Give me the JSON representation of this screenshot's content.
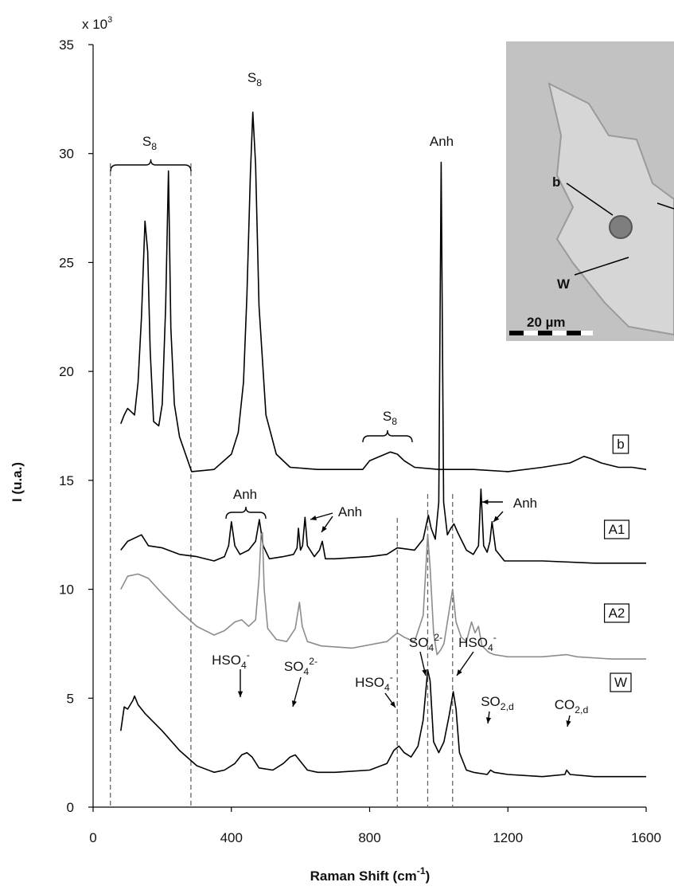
{
  "chart_data": {
    "type": "line",
    "y_multiplier": {
      "text": "x 10",
      "sup": "3"
    },
    "xlabel": {
      "text": "Raman Shift (cm",
      "sup": "-1",
      "after": ")"
    },
    "ylabel": "I (u.a.)",
    "xlim": [
      0,
      1600
    ],
    "xticks": [
      0,
      400,
      800,
      1200,
      1600
    ],
    "ylim": [
      0,
      35
    ],
    "yticks": [
      0,
      5,
      10,
      15,
      20,
      25,
      30,
      35
    ],
    "reference_lines": [
      50,
      283,
      880,
      968,
      1040
    ],
    "series": [
      {
        "name": "b",
        "color": "#000000",
        "x": [
          80,
          90,
          100,
          120,
          130,
          140,
          150,
          158,
          165,
          175,
          190,
          200,
          210,
          218,
          225,
          235,
          250,
          285,
          350,
          400,
          420,
          435,
          445,
          455,
          462,
          470,
          480,
          500,
          530,
          570,
          650,
          780,
          800,
          830,
          860,
          880,
          900,
          930,
          1000,
          1100,
          1200,
          1300,
          1380,
          1420,
          1440,
          1470,
          1520,
          1560,
          1600
        ],
        "values": [
          17.6,
          18.0,
          18.3,
          18.0,
          19.5,
          22.5,
          26.9,
          25.5,
          21.0,
          17.7,
          17.5,
          18.5,
          23.0,
          29.2,
          22.0,
          18.5,
          17.0,
          15.4,
          15.5,
          16.2,
          17.2,
          19.5,
          23.5,
          29.0,
          31.9,
          29.5,
          23.0,
          18.0,
          16.2,
          15.6,
          15.5,
          15.5,
          15.9,
          16.1,
          16.3,
          16.2,
          15.9,
          15.6,
          15.5,
          15.5,
          15.4,
          15.6,
          15.8,
          16.1,
          16.0,
          15.8,
          15.6,
          15.6,
          15.5
        ]
      },
      {
        "name": "A1",
        "color": "#000000",
        "x": [
          80,
          100,
          140,
          160,
          200,
          250,
          300,
          350,
          380,
          392,
          400,
          410,
          425,
          450,
          470,
          481,
          492,
          510,
          550,
          580,
          590,
          594,
          600,
          606,
          613,
          620,
          640,
          655,
          663,
          672,
          700,
          800,
          850,
          880,
          930,
          955,
          970,
          978,
          990,
          1000,
          1007,
          1014,
          1025,
          1035,
          1044,
          1055,
          1080,
          1100,
          1115,
          1122,
          1130,
          1140,
          1148,
          1154,
          1165,
          1190,
          1300,
          1450,
          1600
        ],
        "values": [
          11.8,
          12.2,
          12.5,
          12.0,
          11.9,
          11.6,
          11.5,
          11.3,
          11.5,
          12.0,
          13.1,
          12.0,
          11.6,
          11.8,
          12.2,
          13.2,
          12.0,
          11.4,
          11.5,
          11.6,
          11.9,
          12.8,
          11.8,
          12.0,
          13.3,
          12.0,
          11.5,
          11.8,
          12.2,
          11.4,
          11.4,
          11.5,
          11.6,
          11.9,
          11.8,
          12.3,
          13.4,
          12.8,
          12.3,
          14.0,
          29.6,
          14.0,
          12.5,
          12.8,
          13.0,
          12.6,
          11.8,
          11.6,
          12.0,
          14.6,
          12.0,
          11.7,
          12.2,
          13.1,
          11.8,
          11.3,
          11.3,
          11.2,
          11.2
        ]
      },
      {
        "name": "A2",
        "color": "#8c8c8c",
        "x": [
          80,
          100,
          130,
          160,
          200,
          250,
          300,
          350,
          380,
          410,
          430,
          450,
          470,
          480,
          486,
          490,
          495,
          505,
          530,
          560,
          585,
          597,
          605,
          620,
          660,
          750,
          850,
          880,
          900,
          930,
          955,
          968,
          975,
          985,
          995,
          1005,
          1015,
          1030,
          1040,
          1050,
          1065,
          1080,
          1095,
          1105,
          1115,
          1125,
          1145,
          1160,
          1200,
          1300,
          1370,
          1400,
          1500,
          1600
        ],
        "values": [
          10.0,
          10.6,
          10.7,
          10.5,
          9.8,
          9.0,
          8.3,
          7.9,
          8.1,
          8.5,
          8.6,
          8.3,
          8.6,
          10.5,
          12.5,
          12.6,
          10.0,
          8.2,
          7.7,
          7.6,
          8.2,
          9.4,
          8.3,
          7.6,
          7.4,
          7.3,
          7.6,
          8.0,
          7.8,
          7.6,
          8.8,
          12.5,
          11.0,
          8.0,
          7.0,
          7.2,
          7.5,
          9.0,
          10.0,
          8.5,
          7.8,
          7.6,
          8.5,
          8.0,
          8.3,
          7.4,
          7.1,
          7.0,
          6.9,
          6.9,
          7.0,
          6.9,
          6.8,
          6.8
        ]
      },
      {
        "name": "W",
        "color": "#000000",
        "x": [
          80,
          90,
          100,
          115,
          120,
          130,
          150,
          200,
          250,
          300,
          350,
          380,
          410,
          430,
          445,
          460,
          480,
          520,
          550,
          570,
          585,
          600,
          620,
          650,
          700,
          800,
          850,
          870,
          885,
          900,
          920,
          940,
          955,
          968,
          975,
          985,
          1000,
          1015,
          1030,
          1042,
          1050,
          1060,
          1080,
          1100,
          1140,
          1150,
          1160,
          1200,
          1300,
          1365,
          1370,
          1380,
          1450,
          1600
        ],
        "values": [
          3.5,
          4.6,
          4.5,
          4.9,
          5.1,
          4.7,
          4.3,
          3.5,
          2.6,
          1.9,
          1.6,
          1.7,
          2.0,
          2.4,
          2.5,
          2.3,
          1.8,
          1.7,
          2.0,
          2.3,
          2.4,
          2.1,
          1.7,
          1.6,
          1.6,
          1.7,
          2.0,
          2.6,
          2.8,
          2.5,
          2.3,
          2.8,
          4.0,
          6.3,
          5.8,
          3.0,
          2.5,
          3.0,
          4.2,
          5.3,
          4.5,
          2.5,
          1.7,
          1.6,
          1.5,
          1.7,
          1.6,
          1.5,
          1.4,
          1.5,
          1.7,
          1.5,
          1.4,
          1.4
        ]
      }
    ],
    "annotations": [
      {
        "text": "S",
        "sub": "8"
      },
      {
        "text": "S",
        "sub": "8"
      },
      {
        "text": "Anh"
      },
      {
        "text": "S",
        "sub": "8"
      },
      {
        "text": "Anh"
      },
      {
        "text": "Anh"
      },
      {
        "text": "Anh"
      },
      {
        "text": "HSO",
        "sub": "4",
        "sup": "-"
      },
      {
        "text": "SO",
        "sub": "4",
        "sup": "2-"
      },
      {
        "text": "HSO",
        "sub": "4",
        "sup": "-"
      },
      {
        "text": "SO",
        "sub": "4",
        "sup": "2-"
      },
      {
        "text": "HSO",
        "sub": "4",
        "sup": "-"
      },
      {
        "text": "SO",
        "sub": "2,d"
      },
      {
        "text": "CO",
        "sub": "2,d"
      }
    ],
    "inset": {
      "labels": [
        "b",
        "W"
      ],
      "scale_bar": "20 µm"
    }
  }
}
